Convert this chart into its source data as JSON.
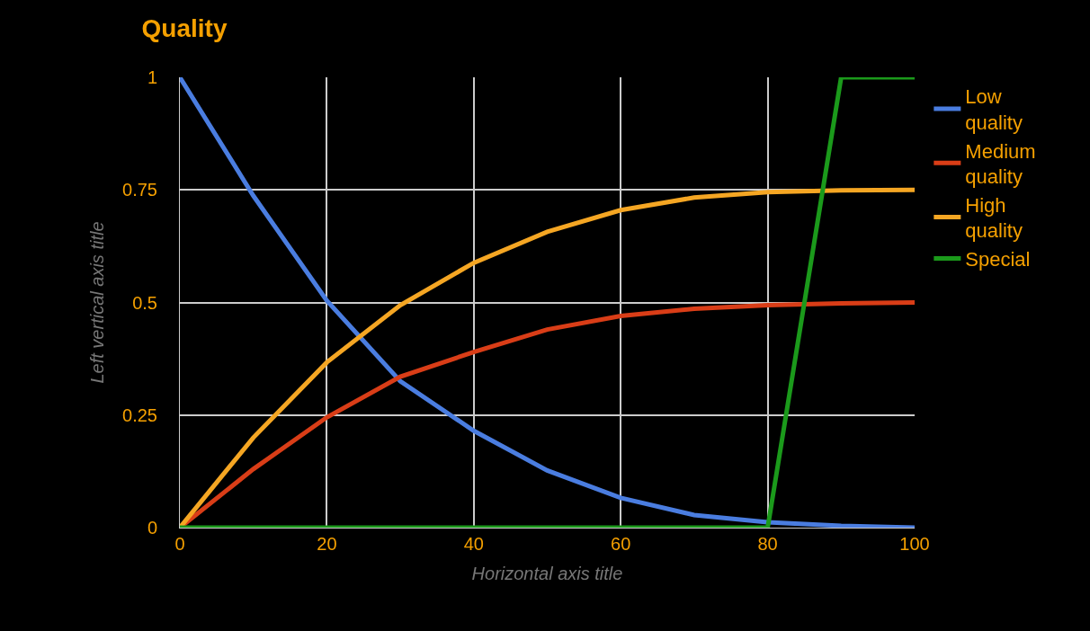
{
  "chart_data": {
    "type": "line",
    "title": "Quality",
    "xlabel": "Horizontal axis title",
    "ylabel": "Left vertical axis title",
    "x": [
      0,
      10,
      20,
      30,
      40,
      50,
      60,
      70,
      80,
      90,
      100
    ],
    "series": [
      {
        "name": "Low quality",
        "color": "#4a7de0",
        "values": [
          1,
          0.737,
          0.504,
          0.325,
          0.215,
          0.127,
          0.066,
          0.028,
          0.012,
          0.004,
          0
        ]
      },
      {
        "name": "Medium quality",
        "color": "#d93d17",
        "values": [
          0,
          0.13,
          0.245,
          0.335,
          0.39,
          0.44,
          0.47,
          0.486,
          0.494,
          0.498,
          0.5
        ]
      },
      {
        "name": "High quality",
        "color": "#f5a623",
        "values": [
          0,
          0.2,
          0.367,
          0.494,
          0.588,
          0.657,
          0.705,
          0.733,
          0.745,
          0.749,
          0.75
        ]
      },
      {
        "name": "Special",
        "color": "#1b9a1b",
        "values": [
          0,
          0,
          0,
          0,
          0,
          0,
          0,
          0,
          0,
          1,
          1
        ]
      }
    ],
    "xlim": [
      0,
      100
    ],
    "xticks": [
      0,
      20,
      40,
      60,
      80,
      100
    ],
    "ylim": [
      0,
      1
    ],
    "yticks": [
      0,
      0.25,
      0.5,
      0.75,
      1
    ],
    "grid": true,
    "legend": "top right",
    "marker": "none",
    "line_style": "solid"
  }
}
